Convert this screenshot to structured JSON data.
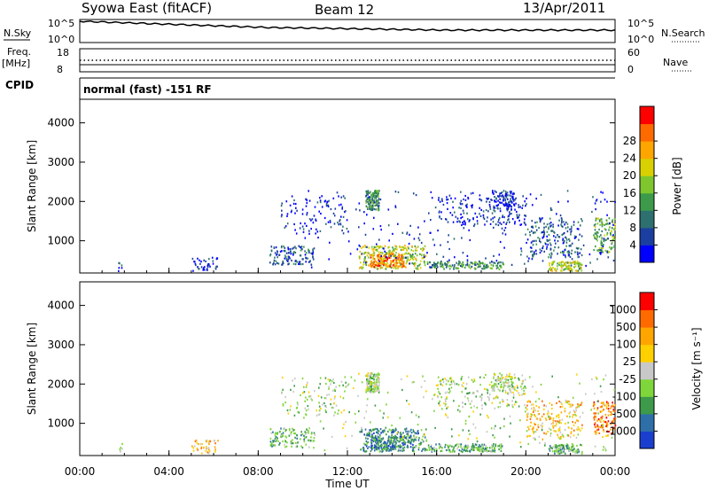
{
  "header": {
    "title": "Syowa East (fitACF)",
    "beam": "Beam 12",
    "date": "13/Apr/2011"
  },
  "panels": {
    "nsky": {
      "label": "N.Sky",
      "tick_top": "10^5",
      "tick_bottom": "10^0",
      "right_label": "N.Search",
      "right_tick_top": "10^5",
      "right_tick_bottom": "10^0"
    },
    "freq": {
      "label_line1": "Freq.",
      "label_line2": "[MHz]",
      "tick_top": "18",
      "tick_bottom": "8",
      "right_label": "Nave",
      "right_tick_top": "60",
      "right_tick_bottom": "0"
    },
    "cpid": {
      "label": "CPID",
      "text": "normal (fast) -151 RF"
    }
  },
  "chart_data": [
    {
      "type": "heatmap",
      "name": "power",
      "ylabel": "Slant Range [km]",
      "y_ticks": [
        "1000",
        "2000",
        "3000",
        "4000"
      ],
      "ylim": [
        180,
        4600
      ],
      "colorbar_label": "Power [dB]",
      "colorbar_ticks": [
        "4",
        "8",
        "12",
        "16",
        "20",
        "24",
        "28"
      ],
      "colorbar_colors": [
        "#0000ff",
        "#1a3fa0",
        "#2e6f70",
        "#3c9a4a",
        "#7fc62e",
        "#d8d000",
        "#ffa500",
        "#ff6a00",
        "#ff0000"
      ]
    },
    {
      "type": "heatmap",
      "name": "velocity",
      "ylabel": "Slant Range [km]",
      "y_ticks": [
        "1000",
        "2000",
        "3000",
        "4000"
      ],
      "ylim": [
        180,
        4600
      ],
      "colorbar_label": "Velocity [m s⁻¹]",
      "colorbar_ticks": [
        "1000",
        "500",
        "100",
        "25",
        "-25",
        "-100",
        "-500",
        "-1000"
      ],
      "colorbar_colors": [
        "#1a3fcf",
        "#2e6fa8",
        "#3c9a4a",
        "#7fd63a",
        "#c8c8c8",
        "#ffd000",
        "#ffa500",
        "#ff6a00",
        "#ff0000"
      ]
    }
  ],
  "time_axis": {
    "label": "Time UT",
    "ticks": [
      "00:00",
      "04:00",
      "08:00",
      "12:00",
      "16:00",
      "20:00",
      "00:00"
    ]
  }
}
